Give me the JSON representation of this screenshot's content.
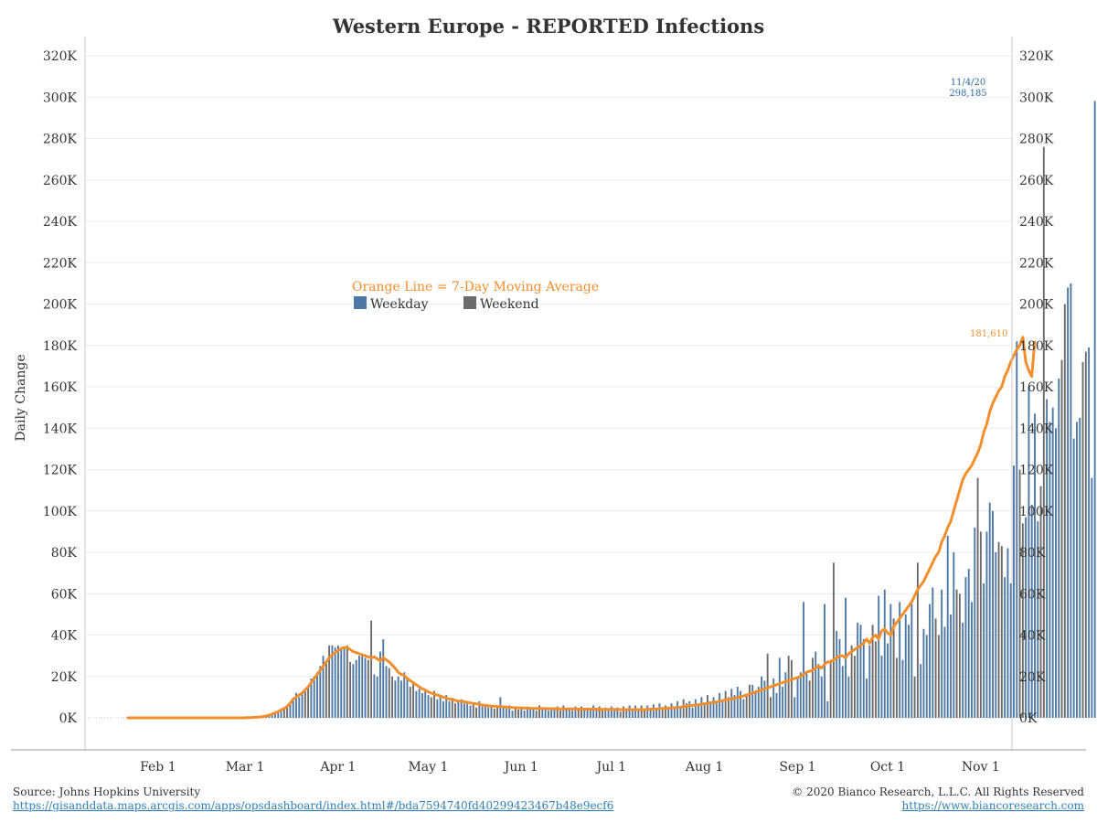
{
  "title": "Western Europe - REPORTED Infections",
  "footer": {
    "source": "Source: Johns Hopkins University",
    "source_url": "https://gisanddata.maps.arcgis.com/apps/opsdashboard/index.html#/bda7594740fd40299423467b48e9ecf6",
    "copyright": "© 2020 Bianco Research, L.L.C. All Rights Reserved",
    "site_url": "https://www.biancoresearch.com"
  },
  "colors": {
    "weekday": "#4e79a7",
    "weekend": "#6b6b6b",
    "average": "#f28e2b"
  },
  "chart_data": {
    "type": "bar",
    "ylabel": "Daily Change",
    "ylim": [
      0,
      320000
    ],
    "y_ticks": [
      "0K",
      "20K",
      "40K",
      "60K",
      "80K",
      "100K",
      "120K",
      "140K",
      "160K",
      "180K",
      "200K",
      "220K",
      "240K",
      "260K",
      "280K",
      "300K",
      "320K"
    ],
    "x_ticks": [
      "Feb 1",
      "Mar 1",
      "Apr 1",
      "May 1",
      "Jun 1",
      "Jul 1",
      "Aug 1",
      "Sep 1",
      "Oct 1",
      "Nov 1"
    ],
    "x_start_date": "2020-01-22",
    "legend": {
      "line": "Orange Line = 7-Day Moving Average",
      "weekday": "Weekday",
      "weekend": "Weekend"
    },
    "annotations": {
      "peak_date": "11/4/20",
      "peak_value": "298,185",
      "last_average": "181,610"
    },
    "daily_values": [
      0,
      0,
      0,
      0,
      0,
      0,
      0,
      0,
      0,
      0,
      0,
      0,
      0,
      0,
      0,
      0,
      0,
      0,
      0,
      0,
      0,
      0,
      0,
      0,
      0,
      0,
      0,
      0,
      0,
      0,
      0,
      0,
      0,
      0,
      0,
      0,
      0,
      0,
      0,
      0,
      100,
      150,
      200,
      300,
      400,
      600,
      900,
      1300,
      1800,
      2400,
      3000,
      3800,
      4500,
      5500,
      7000,
      9000,
      12000,
      10000,
      11500,
      13000,
      15000,
      19000,
      20000,
      22000,
      25000,
      30000,
      27000,
      35000,
      35000,
      34000,
      35000,
      33000,
      34000,
      35000,
      27000,
      26000,
      28000,
      30000,
      30000,
      29000,
      28000,
      47000,
      21000,
      20000,
      32000,
      38000,
      25000,
      24000,
      20000,
      18000,
      20000,
      18000,
      22000,
      19000,
      15000,
      17000,
      13000,
      14000,
      12000,
      13000,
      11000,
      10000,
      13000,
      9000,
      10000,
      8000,
      11000,
      8000,
      9000,
      7000,
      8000,
      9000,
      7000,
      8000,
      6000,
      7000,
      5000,
      8000,
      5500,
      6000,
      5000,
      6000,
      4500,
      5500,
      10000,
      5000,
      4500,
      6000,
      3500,
      5000,
      4000,
      5000,
      3500,
      5500,
      4000,
      5000,
      3500,
      6000,
      4000,
      5000,
      3500,
      5000,
      4500,
      5500,
      3500,
      6000,
      4000,
      5000,
      3500,
      5500,
      4000,
      5500,
      4000,
      5000,
      3500,
      6000,
      4000,
      5500,
      3500,
      5000,
      3500,
      5500,
      4000,
      5000,
      3000,
      5500,
      3500,
      6000,
      4000,
      6000,
      3500,
      6000,
      4000,
      6000,
      4000,
      6500,
      4000,
      7000,
      5000,
      6000,
      4500,
      7000,
      5000,
      8000,
      5000,
      9000,
      7000,
      8000,
      5000,
      9000,
      6000,
      10000,
      7000,
      11000,
      8000,
      10000,
      7000,
      12000,
      9000,
      13000,
      10000,
      14000,
      11000,
      15000,
      13000,
      9000,
      11000,
      16000,
      16000,
      13000,
      15000,
      20000,
      18000,
      31000,
      10000,
      19000,
      12000,
      29000,
      15000,
      22000,
      30000,
      28000,
      10000,
      20000,
      22000,
      56000,
      22000,
      18000,
      29000,
      32000,
      26000,
      20000,
      55000,
      8000,
      28000,
      75000,
      42000,
      38000,
      25000,
      58000,
      20000,
      35000,
      30000,
      46000,
      45000,
      38000,
      19000,
      35000,
      45000,
      37000,
      59000,
      30000,
      62000,
      36000,
      55000,
      48000,
      29000,
      56000,
      28000,
      50000,
      45000,
      55000,
      20000,
      75000,
      26000,
      43000,
      40000,
      55000,
      63000,
      48000,
      40000,
      62000,
      44000,
      88000,
      50000,
      80000,
      62000,
      60000,
      46000,
      68000,
      72000,
      56000,
      92000,
      116000,
      90000,
      65000,
      90000,
      104000,
      100000,
      80000,
      85000,
      83000,
      68000,
      82000,
      65000,
      122000,
      182000,
      120000,
      94000,
      97000,
      160000,
      103000,
      147000,
      95000,
      112000,
      276000,
      154000,
      143000,
      150000,
      140000,
      164000,
      173000,
      200000,
      208000,
      210000,
      135000,
      143000,
      145000,
      172000,
      177000,
      179000,
      116000,
      298185
    ],
    "average_values": [
      0,
      0,
      0,
      0,
      0,
      0,
      0,
      0,
      0,
      0,
      0,
      0,
      0,
      0,
      0,
      0,
      0,
      0,
      0,
      0,
      0,
      0,
      0,
      0,
      0,
      0,
      0,
      0,
      0,
      0,
      0,
      0,
      0,
      0,
      0,
      0,
      0,
      0,
      0,
      0,
      100,
      150,
      200,
      300,
      400,
      600,
      900,
      1300,
      1800,
      2400,
      3000,
      3800,
      4500,
      5500,
      7000,
      9000,
      10000,
      11000,
      12000,
      13500,
      15000,
      17000,
      19000,
      21000,
      23000,
      25000,
      27000,
      29000,
      30500,
      31500,
      32500,
      33500,
      34000,
      34000,
      33000,
      32000,
      31500,
      31000,
      30500,
      30000,
      29500,
      29000,
      29500,
      28500,
      27500,
      29000,
      28000,
      27000,
      25500,
      24000,
      22000,
      21000,
      20500,
      19000,
      18000,
      17000,
      16000,
      15000,
      14000,
      13500,
      12500,
      12000,
      11500,
      11000,
      10500,
      10000,
      9500,
      9000,
      9000,
      8500,
      8000,
      8000,
      7800,
      7500,
      7200,
      7000,
      6800,
      6500,
      6200,
      6000,
      5800,
      5700,
      5600,
      5500,
      5400,
      5300,
      5200,
      5100,
      5000,
      4900,
      4800,
      4800,
      4700,
      4700,
      4600,
      4600,
      4500,
      4500,
      4500,
      4500,
      4400,
      4400,
      4400,
      4400,
      4300,
      4300,
      4300,
      4300,
      4300,
      4300,
      4200,
      4200,
      4200,
      4200,
      4200,
      4200,
      4200,
      4100,
      4100,
      4100,
      4100,
      4100,
      4100,
      4000,
      4000,
      4000,
      4000,
      4000,
      4000,
      4000,
      4000,
      4000,
      4000,
      4100,
      4200,
      4200,
      4300,
      4400,
      4500,
      4600,
      4700,
      4800,
      4900,
      5000,
      5200,
      5400,
      5600,
      5800,
      6000,
      6200,
      6400,
      6600,
      6800,
      7000,
      7200,
      7400,
      7700,
      8000,
      8300,
      8600,
      8900,
      9200,
      9500,
      9800,
      10100,
      10500,
      11000,
      11500,
      12000,
      12500,
      13000,
      13500,
      14000,
      14500,
      15000,
      15500,
      16000,
      16500,
      17000,
      17500,
      18000,
      18500,
      19000,
      19500,
      20000,
      21000,
      22000,
      22500,
      23000,
      24000,
      25000,
      24000,
      26000,
      27000,
      27000,
      28000,
      29000,
      30000,
      30000,
      29000,
      31000,
      32000,
      33000,
      34000,
      35000,
      36000,
      38000,
      36000,
      39000,
      40000,
      38000,
      42000,
      43000,
      41000,
      40000,
      44000,
      46000,
      48000,
      50000,
      52000,
      54000,
      56000,
      59000,
      62000,
      64000,
      66000,
      69000,
      72000,
      75000,
      78000,
      80000,
      85000,
      88000,
      92000,
      95000,
      100000,
      105000,
      110000,
      115000,
      118000,
      120000,
      122000,
      125000,
      128000,
      132000,
      138000,
      142000,
      148000,
      152000,
      155000,
      158000,
      160000,
      165000,
      168000,
      172000,
      175000,
      178000,
      180000,
      184000,
      172000,
      168000,
      165000,
      181610
    ]
  }
}
